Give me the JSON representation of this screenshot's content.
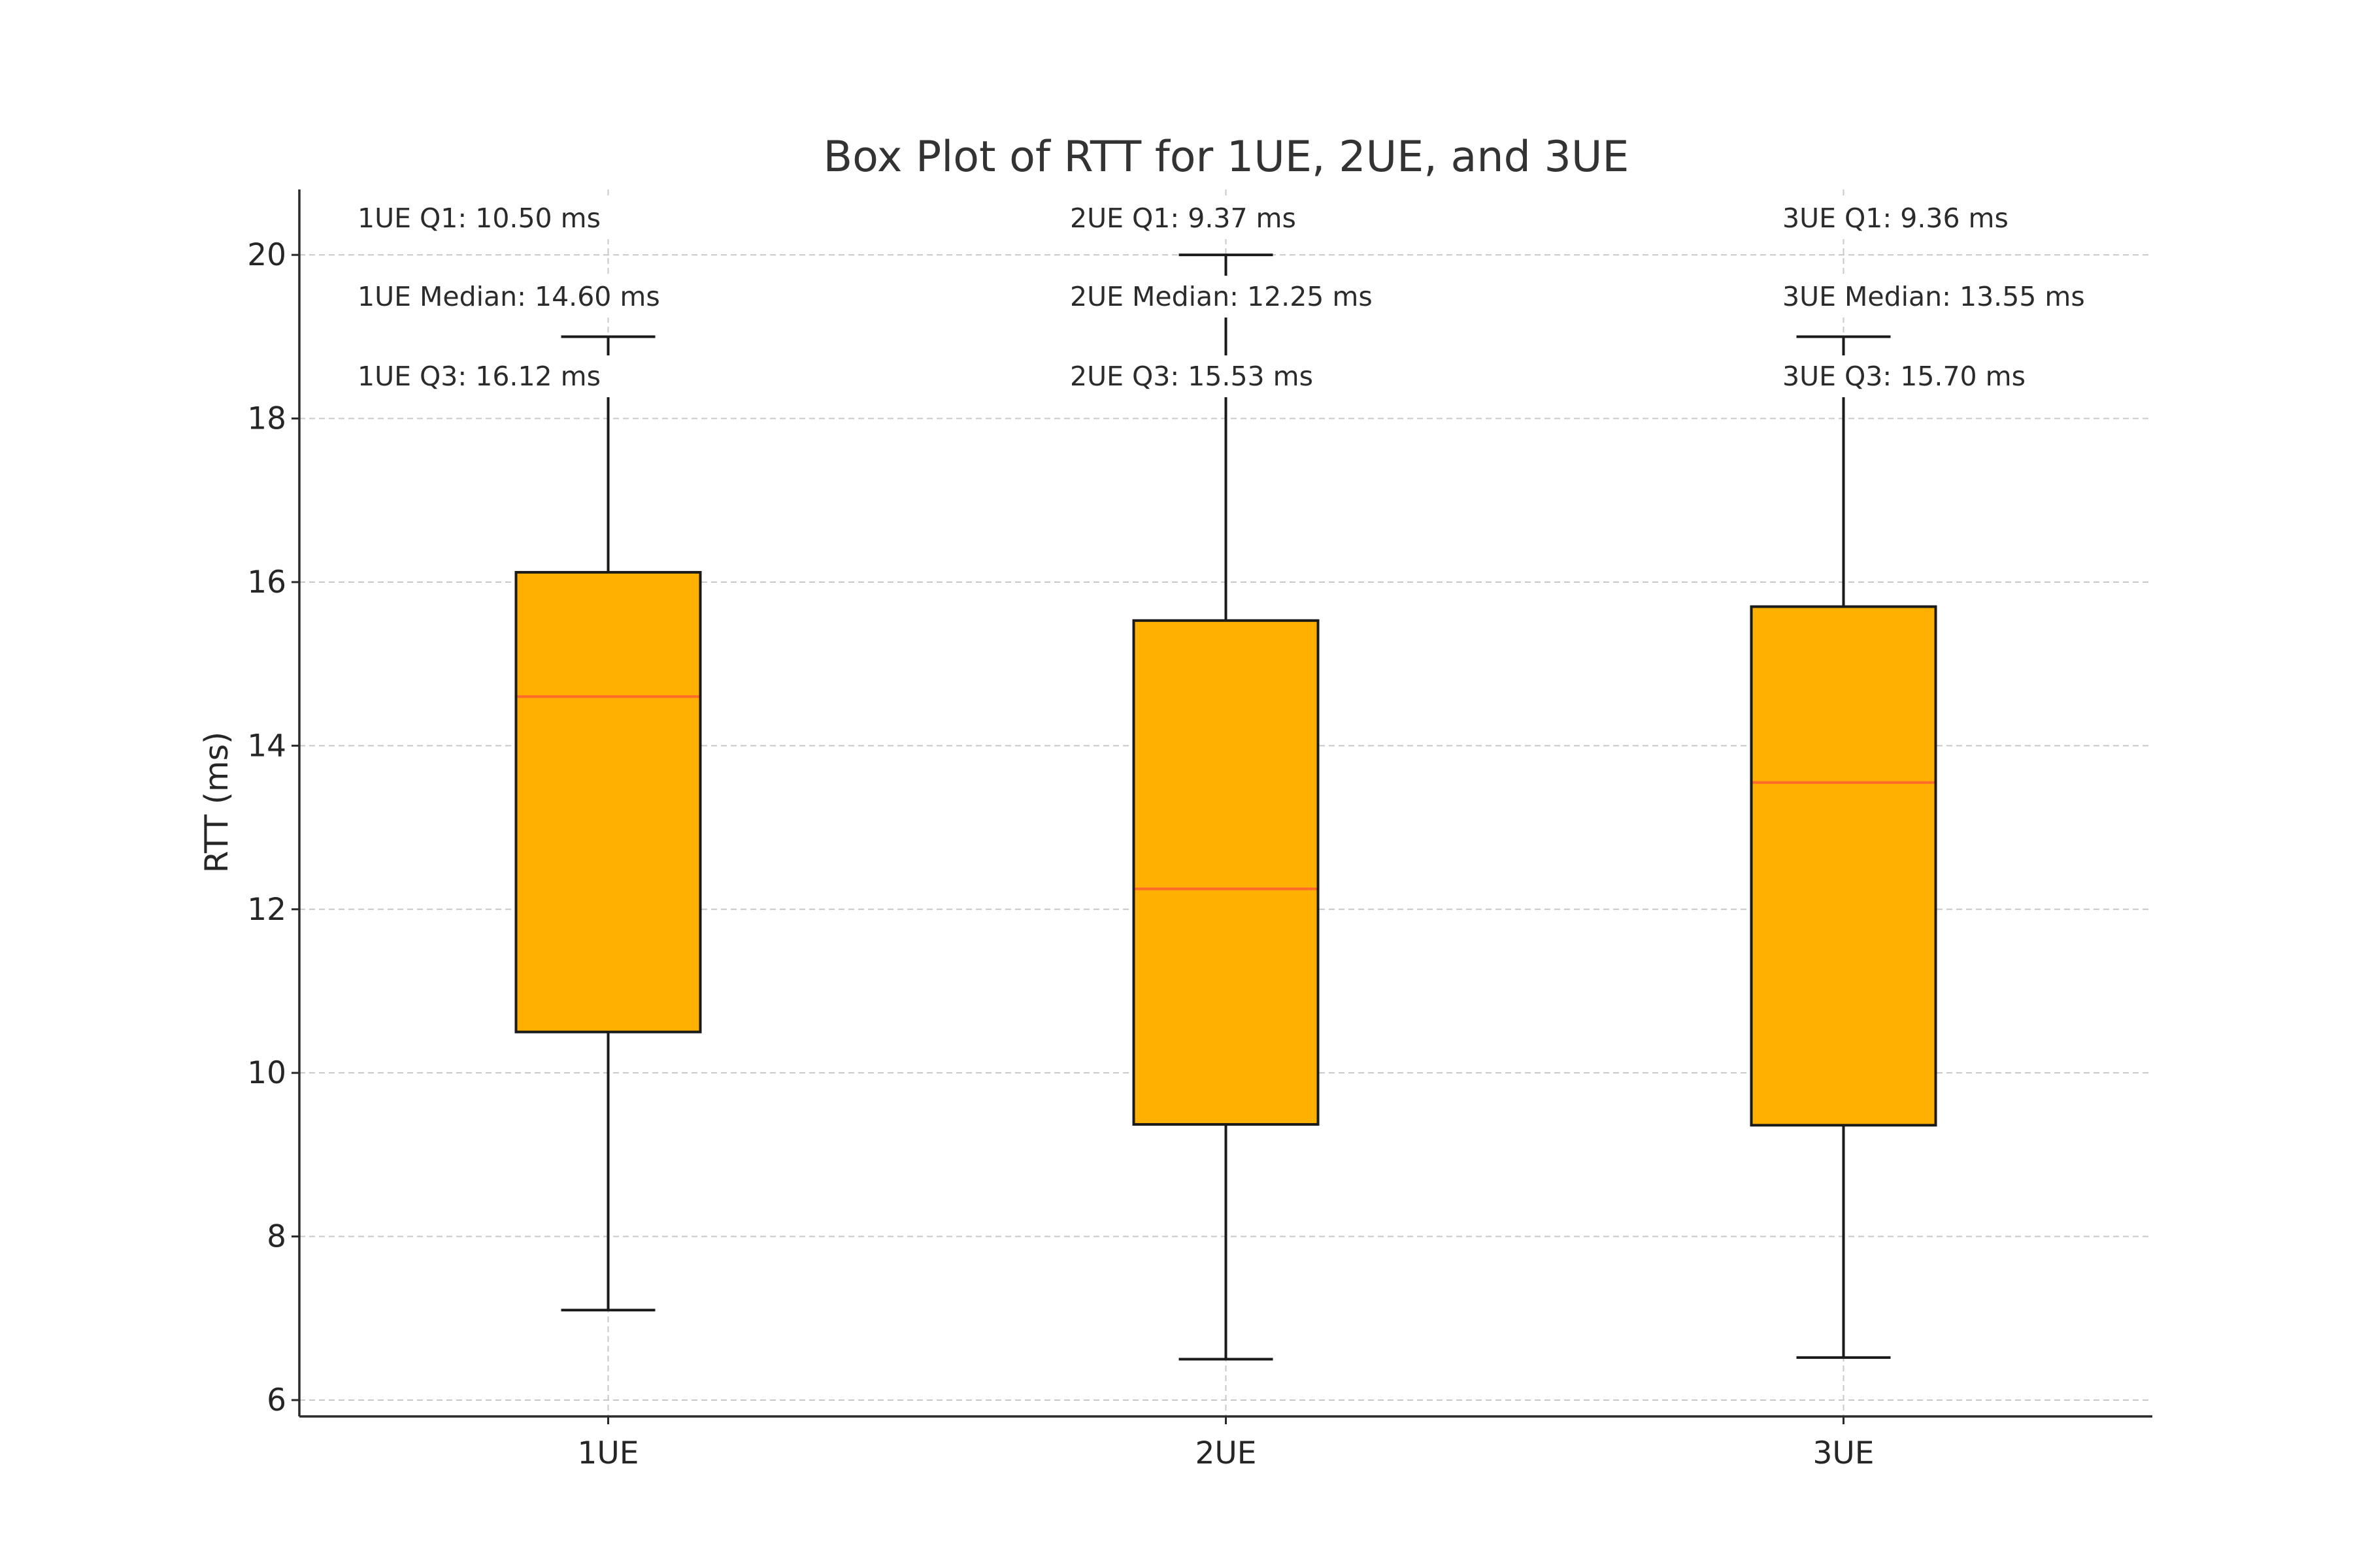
{
  "chart_data": {
    "type": "box",
    "title": "Box Plot of RTT for 1UE, 2UE, and 3UE",
    "xlabel": "",
    "ylabel": "RTT (ms)",
    "ylim": [
      5.8,
      20.8
    ],
    "yticks": [
      6,
      8,
      10,
      12,
      14,
      16,
      18,
      20
    ],
    "categories": [
      "1UE",
      "2UE",
      "3UE"
    ],
    "grid": true,
    "colors": {
      "box": "#ffb000",
      "median": "#ff6a2b",
      "edge": "#1a1a1a",
      "grid": "#c8c8c8"
    },
    "boxes": [
      {
        "category": "1UE",
        "whisker_low": 7.1,
        "q1": 10.5,
        "median": 14.6,
        "q3": 16.12,
        "whisker_high": 19.0
      },
      {
        "category": "2UE",
        "whisker_low": 6.5,
        "q1": 9.37,
        "median": 12.25,
        "q3": 15.53,
        "whisker_high": 20.0
      },
      {
        "category": "3UE",
        "whisker_low": 6.52,
        "q1": 9.36,
        "median": 13.55,
        "q3": 15.7,
        "whisker_high": 19.0
      }
    ],
    "annotations": [
      [
        "1UE Q1: 10.50 ms",
        "1UE Median: 14.60 ms",
        "1UE Q3: 16.12 ms"
      ],
      [
        "2UE Q1: 9.37 ms",
        "2UE Median: 12.25 ms",
        "2UE Q3: 15.53 ms"
      ],
      [
        "3UE Q1: 9.36 ms",
        "3UE Median: 13.55 ms",
        "3UE Q3: 15.70 ms"
      ]
    ]
  }
}
